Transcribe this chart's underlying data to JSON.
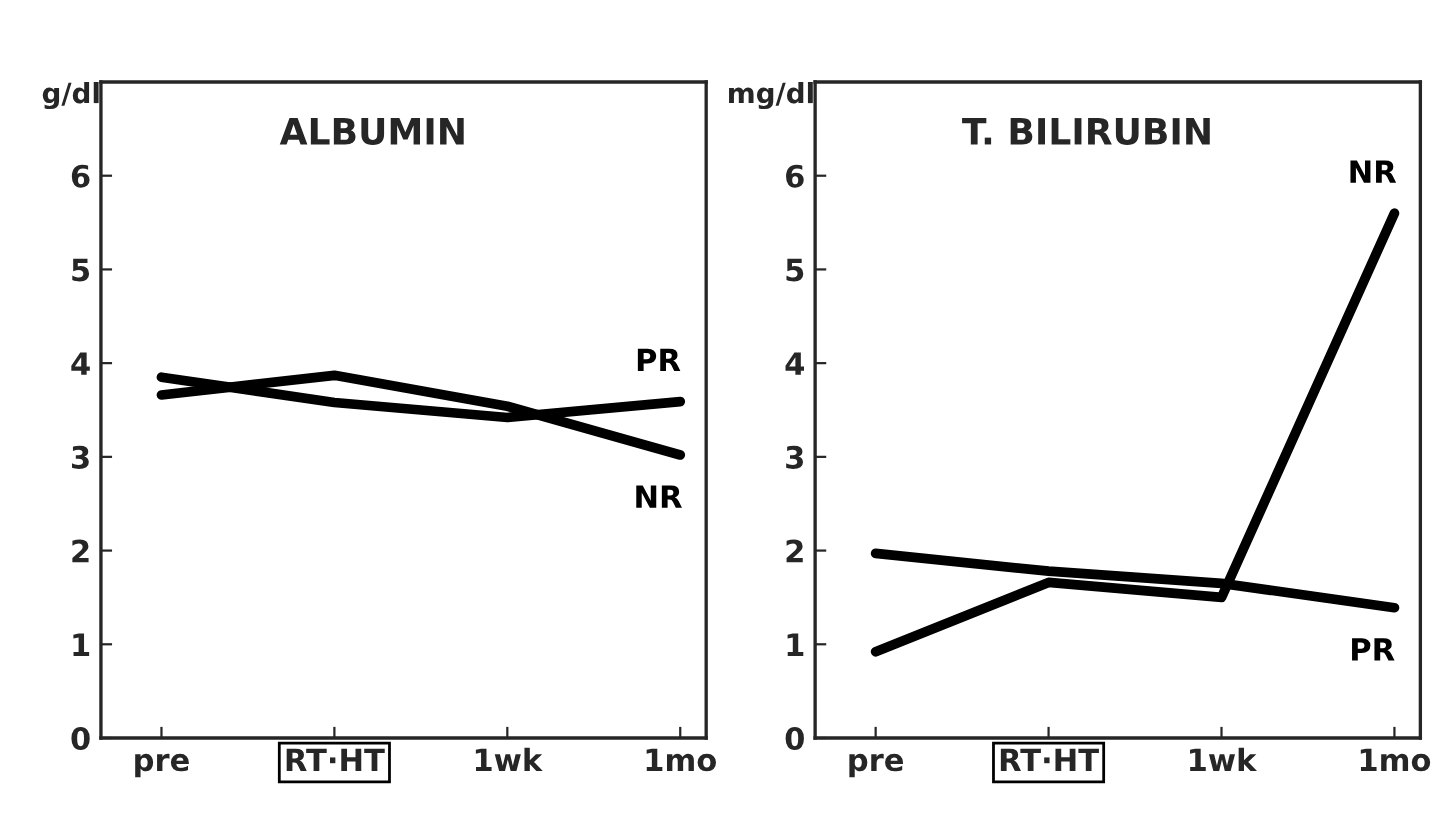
{
  "chart_data": [
    {
      "type": "line",
      "title": "ALBUMIN",
      "ylabel": "g/dl",
      "categories": [
        "pre",
        "RT·HT",
        "1wk",
        "1mo"
      ],
      "ylim": [
        0,
        7
      ],
      "yticks": [
        0,
        1,
        2,
        3,
        4,
        5,
        6
      ],
      "grid": false,
      "legend": false,
      "marker": "none",
      "line_style": "solid",
      "series": [
        {
          "name": "PR",
          "color": "#000000",
          "values": [
            3.85,
            3.58,
            3.42,
            3.59
          ]
        },
        {
          "name": "NR",
          "color": "#000000",
          "values": [
            3.66,
            3.87,
            3.54,
            3.02
          ]
        }
      ]
    },
    {
      "type": "line",
      "title": "T. BILIRUBIN",
      "ylabel": "mg/dl",
      "categories": [
        "pre",
        "RT·HT",
        "1wk",
        "1mo"
      ],
      "ylim": [
        0,
        7
      ],
      "yticks": [
        0,
        1,
        2,
        3,
        4,
        5,
        6
      ],
      "grid": false,
      "legend": false,
      "marker": "none",
      "line_style": "solid",
      "series": [
        {
          "name": "PR",
          "color": "#000000",
          "values": [
            1.97,
            1.78,
            1.65,
            1.39
          ]
        },
        {
          "name": "NR",
          "color": "#000000",
          "values": [
            0.92,
            1.66,
            1.5,
            5.6
          ]
        }
      ]
    }
  ]
}
